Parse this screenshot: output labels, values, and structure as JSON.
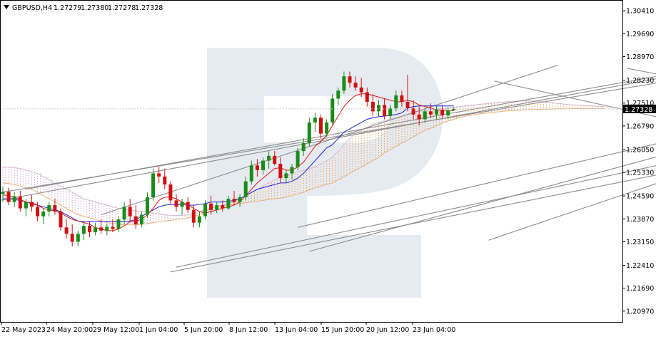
{
  "header": {
    "symbol": "GBPUSD,H4",
    "open": "1.27279",
    "high": "1.27380",
    "low": "1.27278",
    "close": "1.27328"
  },
  "chart_data": {
    "type": "candlestick",
    "symbol": "GBPUSD",
    "timeframe": "H4",
    "ylim": [
      1.2063,
      1.3075
    ],
    "y_ticks": [
      "1.30410",
      "1.29690",
      "1.28970",
      "1.28230",
      "1.27510",
      "1.26790",
      "1.26050",
      "1.25330",
      "1.24590",
      "1.23870",
      "1.23150",
      "1.22410",
      "1.21690",
      "1.20970"
    ],
    "x_ticks": [
      "22 May 2023",
      "24 May 20:00",
      "29 May 12:00",
      "1 Jun 04:00",
      "5 Jun 20:00",
      "8 Jun 12:00",
      "13 Jun 04:00",
      "15 Jun 20:00",
      "20 Jun 12:00",
      "23 Jun 04:00"
    ],
    "current_price": "1.27328",
    "candles": [
      [
        1.2465,
        1.2488,
        1.244,
        1.2472
      ],
      [
        1.2472,
        1.2485,
        1.243,
        1.244
      ],
      [
        1.244,
        1.247,
        1.2425,
        1.2458
      ],
      [
        1.2458,
        1.2475,
        1.241,
        1.242
      ],
      [
        1.242,
        1.245,
        1.2395,
        1.244
      ],
      [
        1.244,
        1.2462,
        1.241,
        1.2425
      ],
      [
        1.2425,
        1.244,
        1.238,
        1.2395
      ],
      [
        1.2395,
        1.242,
        1.237,
        1.241
      ],
      [
        1.241,
        1.244,
        1.2395,
        1.243
      ],
      [
        1.243,
        1.245,
        1.24,
        1.241
      ],
      [
        1.241,
        1.242,
        1.235,
        1.236
      ],
      [
        1.236,
        1.2385,
        1.2325,
        1.234
      ],
      [
        1.234,
        1.237,
        1.23,
        1.2315
      ],
      [
        1.2315,
        1.235,
        1.23,
        1.234
      ],
      [
        1.234,
        1.238,
        1.232,
        1.2365
      ],
      [
        1.2365,
        1.238,
        1.233,
        1.2345
      ],
      [
        1.2345,
        1.2375,
        1.2335,
        1.236
      ],
      [
        1.236,
        1.2385,
        1.234,
        1.235
      ],
      [
        1.235,
        1.2372,
        1.2335,
        1.2362
      ],
      [
        1.2362,
        1.2385,
        1.2345,
        1.2355
      ],
      [
        1.2355,
        1.2395,
        1.2345,
        1.2385
      ],
      [
        1.2385,
        1.244,
        1.237,
        1.2425
      ],
      [
        1.2425,
        1.245,
        1.238,
        1.2395
      ],
      [
        1.2395,
        1.243,
        1.2355,
        1.237
      ],
      [
        1.237,
        1.241,
        1.236,
        1.24
      ],
      [
        1.24,
        1.247,
        1.239,
        1.2455
      ],
      [
        1.2455,
        1.2545,
        1.2445,
        1.253
      ],
      [
        1.253,
        1.255,
        1.25,
        1.252
      ],
      [
        1.252,
        1.2545,
        1.248,
        1.2495
      ],
      [
        1.2495,
        1.2505,
        1.2435,
        1.2445
      ],
      [
        1.2445,
        1.2465,
        1.241,
        1.2425
      ],
      [
        1.2425,
        1.245,
        1.24,
        1.244
      ],
      [
        1.244,
        1.2455,
        1.2405,
        1.2415
      ],
      [
        1.2415,
        1.243,
        1.236,
        1.2375
      ],
      [
        1.2375,
        1.241,
        1.236,
        1.2395
      ],
      [
        1.2395,
        1.2445,
        1.2385,
        1.2435
      ],
      [
        1.2435,
        1.246,
        1.24,
        1.2415
      ],
      [
        1.2415,
        1.244,
        1.2405,
        1.243
      ],
      [
        1.243,
        1.2445,
        1.241,
        1.242
      ],
      [
        1.242,
        1.246,
        1.2415,
        1.245
      ],
      [
        1.245,
        1.2475,
        1.243,
        1.244
      ],
      [
        1.244,
        1.2465,
        1.2425,
        1.2455
      ],
      [
        1.2455,
        1.252,
        1.2445,
        1.2505
      ],
      [
        1.2505,
        1.257,
        1.2495,
        1.2555
      ],
      [
        1.2555,
        1.2575,
        1.252,
        1.254
      ],
      [
        1.254,
        1.258,
        1.2525,
        1.257
      ],
      [
        1.257,
        1.26,
        1.2545,
        1.2585
      ],
      [
        1.2585,
        1.26,
        1.2555,
        1.256
      ],
      [
        1.256,
        1.258,
        1.25,
        1.2515
      ],
      [
        1.2515,
        1.254,
        1.25,
        1.253
      ],
      [
        1.253,
        1.256,
        1.251,
        1.255
      ],
      [
        1.255,
        1.261,
        1.254,
        1.26
      ],
      [
        1.26,
        1.264,
        1.2585,
        1.2625
      ],
      [
        1.2625,
        1.2705,
        1.2615,
        1.269
      ],
      [
        1.269,
        1.272,
        1.266,
        1.2705
      ],
      [
        1.2705,
        1.2715,
        1.264,
        1.2655
      ],
      [
        1.2655,
        1.27,
        1.2645,
        1.269
      ],
      [
        1.269,
        1.278,
        1.268,
        1.2765
      ],
      [
        1.2765,
        1.28,
        1.2745,
        1.279
      ],
      [
        1.279,
        1.285,
        1.278,
        1.2835
      ],
      [
        1.2835,
        1.285,
        1.28,
        1.2815
      ],
      [
        1.2815,
        1.2835,
        1.279,
        1.28
      ],
      [
        1.28,
        1.283,
        1.277,
        1.2785
      ],
      [
        1.2785,
        1.28,
        1.274,
        1.2755
      ],
      [
        1.2755,
        1.278,
        1.271,
        1.2725
      ],
      [
        1.2725,
        1.276,
        1.271,
        1.2745
      ],
      [
        1.2745,
        1.2765,
        1.27,
        1.271
      ],
      [
        1.271,
        1.2745,
        1.27,
        1.2735
      ],
      [
        1.2735,
        1.279,
        1.2725,
        1.2775
      ],
      [
        1.2775,
        1.279,
        1.274,
        1.2755
      ],
      [
        1.2755,
        1.284,
        1.2725,
        1.2735
      ],
      [
        1.2735,
        1.276,
        1.27,
        1.2715
      ],
      [
        1.2715,
        1.274,
        1.268,
        1.27
      ],
      [
        1.27,
        1.2735,
        1.269,
        1.2725
      ],
      [
        1.2725,
        1.275,
        1.2705,
        1.2715
      ],
      [
        1.2715,
        1.274,
        1.27,
        1.273
      ],
      [
        1.273,
        1.2745,
        1.2705,
        1.2712
      ],
      [
        1.2712,
        1.2738,
        1.27,
        1.2728
      ],
      [
        1.2728,
        1.2738,
        1.2728,
        1.2733
      ]
    ],
    "tenkan": [
      1.2462,
      1.246,
      1.2455,
      1.2448,
      1.244,
      1.2438,
      1.243,
      1.242,
      1.2415,
      1.2412,
      1.2405,
      1.2395,
      1.2385,
      1.238,
      1.2375,
      1.237,
      1.236,
      1.2355,
      1.235,
      1.235,
      1.2355,
      1.2365,
      1.2378,
      1.238,
      1.2385,
      1.24,
      1.242,
      1.2445,
      1.2455,
      1.2455,
      1.245,
      1.244,
      1.243,
      1.242,
      1.241,
      1.2405,
      1.241,
      1.2415,
      1.242,
      1.2425,
      1.243,
      1.244,
      1.246,
      1.248,
      1.25,
      1.2515,
      1.253,
      1.2545,
      1.2548,
      1.254,
      1.254,
      1.255,
      1.2565,
      1.259,
      1.2615,
      1.263,
      1.265,
      1.268,
      1.271,
      1.274,
      1.276,
      1.2775,
      1.278,
      1.278,
      1.2775,
      1.277,
      1.2765,
      1.276,
      1.2755,
      1.2755,
      1.276,
      1.2755,
      1.2745,
      1.274,
      1.2735,
      1.273,
      1.2728,
      1.2727,
      1.2727
    ],
    "kijun": [
      1.245,
      1.245,
      1.2448,
      1.2445,
      1.244,
      1.2435,
      1.243,
      1.2425,
      1.242,
      1.2415,
      1.241,
      1.24,
      1.239,
      1.238,
      1.2378,
      1.2378,
      1.2378,
      1.2378,
      1.2378,
      1.2378,
      1.2378,
      1.2378,
      1.238,
      1.2385,
      1.2395,
      1.2405,
      1.2415,
      1.2425,
      1.243,
      1.2432,
      1.2432,
      1.2432,
      1.243,
      1.243,
      1.2432,
      1.2435,
      1.244,
      1.244,
      1.244,
      1.2442,
      1.2445,
      1.245,
      1.246,
      1.247,
      1.248,
      1.2485,
      1.249,
      1.2495,
      1.25,
      1.25,
      1.2505,
      1.2515,
      1.253,
      1.255,
      1.257,
      1.259,
      1.261,
      1.262,
      1.264,
      1.266,
      1.267,
      1.268,
      1.269,
      1.27,
      1.2705,
      1.2708,
      1.271,
      1.2712,
      1.2715,
      1.272,
      1.2735,
      1.274,
      1.2742,
      1.2742,
      1.2742,
      1.2742,
      1.2742,
      1.2742,
      1.2742
    ],
    "cloud_top": [
      1.255,
      1.255,
      1.2548,
      1.2545,
      1.254,
      1.2535,
      1.253,
      1.252,
      1.251,
      1.25,
      1.249,
      1.248,
      1.247,
      1.246,
      1.245,
      1.2445,
      1.244,
      1.2435,
      1.243,
      1.2425,
      1.242,
      1.2418,
      1.2415,
      1.2412,
      1.241,
      1.2408,
      1.2405,
      1.2402,
      1.24,
      1.2398,
      1.2398,
      1.2398,
      1.24,
      1.2405,
      1.241,
      1.2415,
      1.242,
      1.2425,
      1.243,
      1.2435,
      1.244,
      1.245,
      1.246,
      1.247,
      1.248,
      1.249,
      1.25,
      1.251,
      1.252,
      1.2525,
      1.253,
      1.2535,
      1.254,
      1.2545,
      1.255,
      1.256,
      1.257,
      1.258,
      1.26,
      1.262,
      1.264,
      1.2655,
      1.2665,
      1.2675,
      1.2685,
      1.269,
      1.2695,
      1.27,
      1.2705,
      1.271,
      1.2715,
      1.272,
      1.2725,
      1.2728,
      1.273,
      1.2732,
      1.2734,
      1.2736,
      1.2738,
      1.274,
      1.2742,
      1.2744,
      1.2746,
      1.2748,
      1.275,
      1.2752,
      1.2754,
      1.2755,
      1.2756,
      1.2757,
      1.2758,
      1.2758,
      1.2757,
      1.2756,
      1.2754,
      1.2752,
      1.275,
      1.2748,
      1.2746,
      1.2745,
      1.2744,
      1.2743,
      1.2742,
      1.2741,
      1.274
    ],
    "cloud_bottom": [
      1.25,
      1.2498,
      1.2495,
      1.249,
      1.2485,
      1.248,
      1.247,
      1.246,
      1.245,
      1.244,
      1.243,
      1.242,
      1.241,
      1.24,
      1.2395,
      1.239,
      1.2385,
      1.238,
      1.2375,
      1.2372,
      1.237,
      1.2368,
      1.2368,
      1.2368,
      1.237,
      1.2372,
      1.2375,
      1.2378,
      1.238,
      1.2382,
      1.2385,
      1.2388,
      1.239,
      1.2395,
      1.24,
      1.241,
      1.242,
      1.2425,
      1.243,
      1.243,
      1.2432,
      1.2435,
      1.2438,
      1.244,
      1.2442,
      1.2445,
      1.2448,
      1.245,
      1.2452,
      1.2455,
      1.246,
      1.2465,
      1.247,
      1.2478,
      1.2485,
      1.249,
      1.2495,
      1.25,
      1.251,
      1.252,
      1.253,
      1.254,
      1.255,
      1.256,
      1.257,
      1.258,
      1.2595,
      1.2605,
      1.2615,
      1.2625,
      1.2635,
      1.2645,
      1.2655,
      1.2665,
      1.2672,
      1.268,
      1.2688,
      1.2695,
      1.27,
      1.2705,
      1.271,
      1.2713,
      1.2716,
      1.2718,
      1.272,
      1.2722,
      1.2724,
      1.2726,
      1.2727,
      1.2728,
      1.2729,
      1.273,
      1.2731,
      1.2731,
      1.2732,
      1.2732,
      1.2733,
      1.2733,
      1.2733,
      1.2734,
      1.2734,
      1.2734,
      1.2734,
      1.2734,
      1.2734
    ],
    "trendlines": [
      {
        "x1": -2,
        "y1": 1.244,
        "x2": 145,
        "y2": 1.2935
      },
      {
        "x1": -2,
        "y1": 1.2465,
        "x2": 143,
        "y2": 1.2905
      },
      {
        "x1": 4,
        "y1": 1.248,
        "x2": 127,
        "y2": 1.288
      },
      {
        "x1": 17,
        "y1": 1.24,
        "x2": 96,
        "y2": 1.287
      },
      {
        "x1": 30,
        "y1": 1.2235,
        "x2": 199,
        "y2": 1.2885
      },
      {
        "x1": 29,
        "y1": 1.222,
        "x2": 182,
        "y2": 1.2775
      },
      {
        "x1": 53,
        "y1": 1.2285,
        "x2": 140,
        "y2": 1.2715
      },
      {
        "x1": 84,
        "y1": 1.232,
        "x2": 159,
        "y2": 1.278
      },
      {
        "x1": 51,
        "y1": 1.236,
        "x2": 117,
        "y2": 1.264
      },
      {
        "x1": 85,
        "y1": 1.282,
        "x2": 125,
        "y2": 1.266
      },
      {
        "x1": 108,
        "y1": 1.286,
        "x2": 140,
        "y2": 1.275
      }
    ],
    "forecast_arrow": [
      {
        "x": 147,
        "y": 1.276
      },
      {
        "x": 150,
        "y": 1.27
      },
      {
        "x": 159,
        "y": 1.2975
      }
    ]
  }
}
